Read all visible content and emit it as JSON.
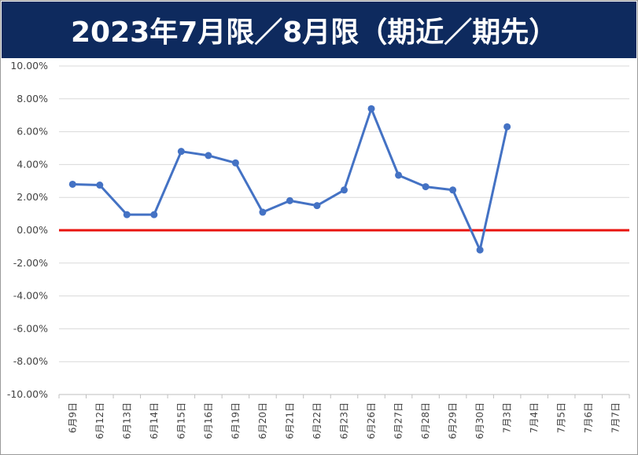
{
  "title": "2023年7月限／8月限（期近／期先）",
  "chart_data": {
    "type": "line",
    "title": "2023年7月限／8月限（期近／期先）",
    "categories": [
      "6月9日",
      "6月12日",
      "6月13日",
      "6月14日",
      "6月15日",
      "6月16日",
      "6月19日",
      "6月20日",
      "6月21日",
      "6月22日",
      "6月23日",
      "6月26日",
      "6月27日",
      "6月28日",
      "6月29日",
      "6月30日",
      "7月3日",
      "7月4日",
      "7月5日",
      "7月6日",
      "7月7日"
    ],
    "series": [
      {
        "values": [
          2.8,
          2.75,
          0.95,
          0.95,
          4.8,
          4.55,
          4.1,
          1.1,
          1.8,
          1.5,
          2.45,
          7.4,
          3.35,
          2.65,
          2.45,
          -1.2,
          6.3,
          null,
          null,
          null,
          null
        ]
      }
    ],
    "yticks": [
      "10.00%",
      "8.00%",
      "6.00%",
      "4.00%",
      "2.00%",
      "0.00%",
      "-2.00%",
      "-4.00%",
      "-6.00%",
      "-8.00%",
      "-10.00%"
    ],
    "ylim": [
      -10,
      10
    ],
    "y_unit": "%",
    "grid": true,
    "zero_line": true,
    "colors": {
      "line": "#4472c4",
      "zero_line": "#e8130f",
      "title_bg": "#0e2a5e",
      "grid": "#d9d9d9"
    }
  }
}
